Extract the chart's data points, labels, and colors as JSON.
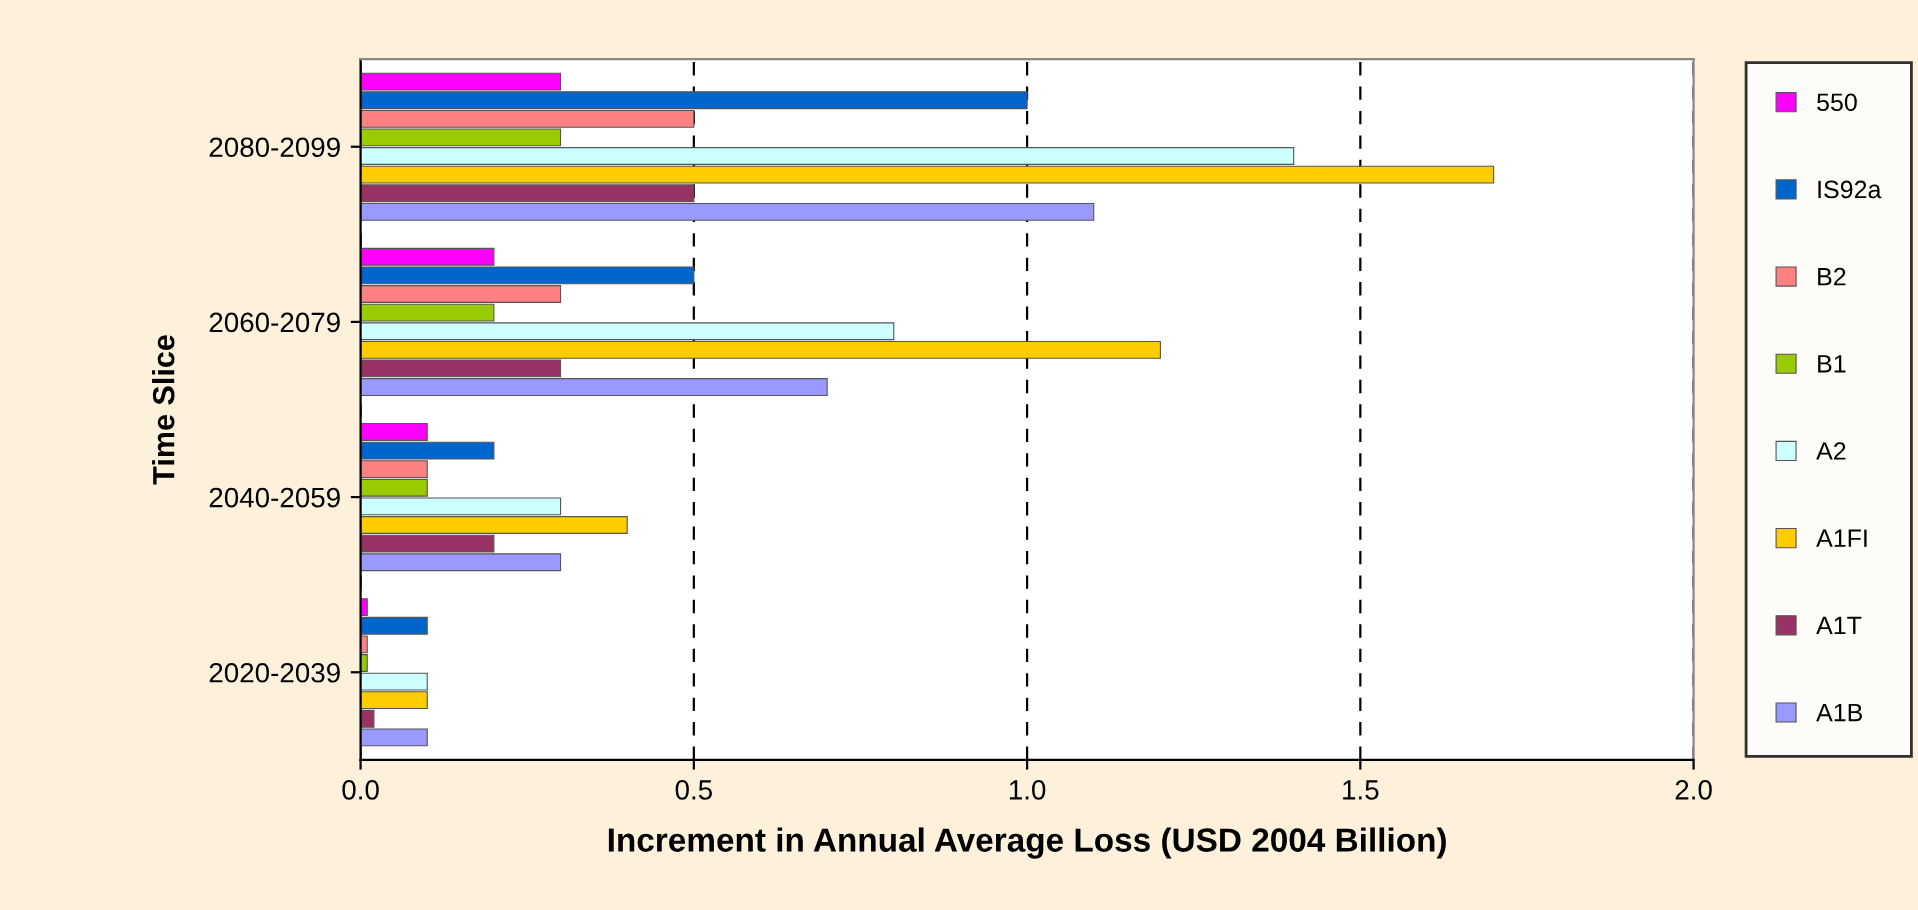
{
  "chart_data": {
    "type": "bar",
    "orientation": "horizontal",
    "categories": [
      "2080-2099",
      "2060-2079",
      "2040-2059",
      "2020-2039"
    ],
    "xlabel": "Increment in Annual Average Loss (USD 2004 Billion)",
    "ylabel": "Time Slice",
    "xlim": [
      0,
      2.0
    ],
    "xticks": [
      {
        "value": 0,
        "label": "0.0"
      },
      0.5,
      {
        "value": 1,
        "label": "1.0"
      },
      1.5,
      {
        "value": 2,
        "label": "2.0"
      }
    ],
    "grid": "x",
    "legend": "right",
    "series": [
      {
        "name": "550",
        "color": "#ff00ff",
        "values": [
          0.3,
          0.2,
          0.1,
          0.01
        ]
      },
      {
        "name": "IS92a",
        "color": "#0066cc",
        "values": [
          1.0,
          0.5,
          0.2,
          0.1
        ]
      },
      {
        "name": "B2",
        "color": "#ff8080",
        "values": [
          0.5,
          0.3,
          0.1,
          0.01
        ]
      },
      {
        "name": "B1",
        "color": "#99cc00",
        "values": [
          0.3,
          0.2,
          0.1,
          0.01
        ]
      },
      {
        "name": "A2",
        "color": "#ccffff",
        "values": [
          1.4,
          0.8,
          0.3,
          0.1
        ]
      },
      {
        "name": "A1FI",
        "color": "#ffcc00",
        "values": [
          1.7,
          1.2,
          0.4,
          0.1
        ]
      },
      {
        "name": "A1T",
        "color": "#993366",
        "values": [
          0.5,
          0.3,
          0.2,
          0.02
        ]
      },
      {
        "name": "A1B",
        "color": "#9999ff",
        "values": [
          1.1,
          0.7,
          0.3,
          0.1
        ]
      }
    ]
  }
}
